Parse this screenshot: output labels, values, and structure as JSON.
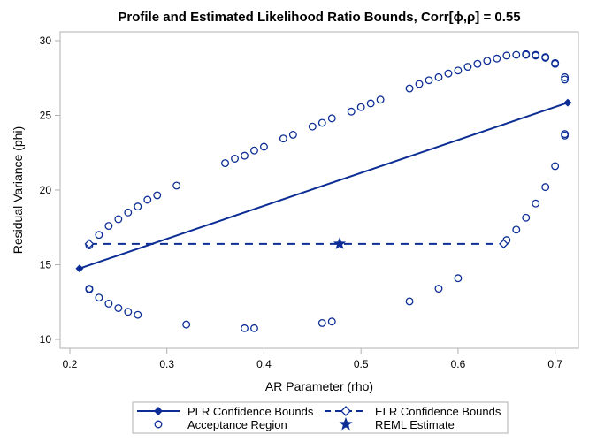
{
  "chart_data": {
    "type": "scatter",
    "title": "Profile and Estimated Likelihood Ratio Bounds, Corr[ϕ,ρ] = 0.55",
    "xlabel": "AR Parameter (rho)",
    "ylabel": "Residual Variance (phi)",
    "xlim": [
      0.19,
      0.724
    ],
    "ylim": [
      9.41,
      30.59
    ],
    "xticks": [
      0.2,
      0.3,
      0.4,
      0.5,
      0.6,
      0.7
    ],
    "xtick_labels": [
      "0.2",
      "0.3",
      "0.4",
      "0.5",
      "0.6",
      "0.7"
    ],
    "yticks": [
      10,
      15,
      20,
      25,
      30
    ],
    "ytick_labels": [
      "10",
      "15",
      "20",
      "25",
      "30"
    ],
    "grid": false,
    "legend_position": "bottom",
    "color": "#0b2d94",
    "series": [
      {
        "name": "PLR Confidence Bounds",
        "style": "solid line with filled diamonds",
        "points": [
          [
            0.21,
            14.75
          ],
          [
            0.713,
            25.85
          ]
        ]
      },
      {
        "name": "ELR Confidence Bounds",
        "style": "dashed line with open diamonds",
        "points": [
          [
            0.22,
            16.4
          ],
          [
            0.647,
            16.4
          ]
        ]
      },
      {
        "name": "Acceptance Region",
        "style": "open circles",
        "points": [
          [
            0.22,
            16.3
          ],
          [
            0.23,
            17.0
          ],
          [
            0.24,
            17.6
          ],
          [
            0.25,
            18.05
          ],
          [
            0.26,
            18.5
          ],
          [
            0.27,
            18.9
          ],
          [
            0.28,
            19.35
          ],
          [
            0.29,
            19.65
          ],
          [
            0.31,
            20.3
          ],
          [
            0.36,
            21.8
          ],
          [
            0.37,
            22.1
          ],
          [
            0.38,
            22.3
          ],
          [
            0.39,
            22.65
          ],
          [
            0.4,
            22.9
          ],
          [
            0.42,
            23.45
          ],
          [
            0.43,
            23.7
          ],
          [
            0.45,
            24.25
          ],
          [
            0.46,
            24.5
          ],
          [
            0.47,
            24.8
          ],
          [
            0.49,
            25.25
          ],
          [
            0.5,
            25.55
          ],
          [
            0.51,
            25.8
          ],
          [
            0.52,
            26.05
          ],
          [
            0.55,
            26.8
          ],
          [
            0.56,
            27.1
          ],
          [
            0.57,
            27.35
          ],
          [
            0.58,
            27.55
          ],
          [
            0.59,
            27.8
          ],
          [
            0.6,
            28.0
          ],
          [
            0.61,
            28.25
          ],
          [
            0.62,
            28.45
          ],
          [
            0.63,
            28.65
          ],
          [
            0.64,
            28.8
          ],
          [
            0.65,
            29.0
          ],
          [
            0.66,
            29.05
          ],
          [
            0.67,
            29.05
          ],
          [
            0.67,
            29.1
          ],
          [
            0.68,
            29.05
          ],
          [
            0.68,
            29.0
          ],
          [
            0.69,
            28.9
          ],
          [
            0.69,
            28.85
          ],
          [
            0.7,
            28.5
          ],
          [
            0.7,
            28.45
          ],
          [
            0.71,
            27.55
          ],
          [
            0.71,
            27.4
          ],
          [
            0.71,
            23.75
          ],
          [
            0.71,
            23.65
          ],
          [
            0.7,
            21.6
          ],
          [
            0.69,
            20.2
          ],
          [
            0.68,
            19.1
          ],
          [
            0.67,
            18.15
          ],
          [
            0.66,
            17.35
          ],
          [
            0.65,
            16.65
          ],
          [
            0.6,
            14.1
          ],
          [
            0.58,
            13.4
          ],
          [
            0.55,
            12.55
          ],
          [
            0.47,
            11.2
          ],
          [
            0.46,
            11.1
          ],
          [
            0.39,
            10.75
          ],
          [
            0.38,
            10.75
          ],
          [
            0.32,
            11.0
          ],
          [
            0.27,
            11.65
          ],
          [
            0.26,
            11.85
          ],
          [
            0.25,
            12.1
          ],
          [
            0.24,
            12.4
          ],
          [
            0.23,
            12.8
          ],
          [
            0.22,
            13.4
          ],
          [
            0.22,
            13.35
          ]
        ]
      },
      {
        "name": "REML Estimate",
        "style": "filled star",
        "points": [
          [
            0.478,
            16.4
          ]
        ]
      }
    ]
  }
}
